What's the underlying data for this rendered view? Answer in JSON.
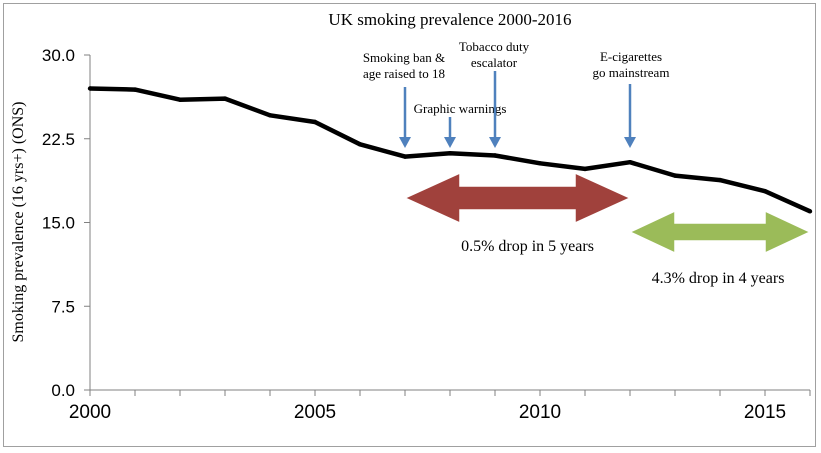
{
  "chart_data": {
    "type": "line",
    "title": "UK smoking prevalence 2000-2016",
    "xlabel": "",
    "ylabel": "Smoking prevalence (16 yrs+) (ONS)",
    "xlim": [
      2000,
      2016
    ],
    "ylim": [
      0,
      30
    ],
    "x_ticks": [
      "2000",
      "2005",
      "2010",
      "2015"
    ],
    "y_ticks": [
      "0.0",
      "7.5",
      "15.0",
      "22.5",
      "30.0"
    ],
    "grid": false,
    "series": [
      {
        "name": "",
        "color": "#000000",
        "x": [
          2000,
          2001,
          2002,
          2003,
          2004,
          2005,
          2006,
          2007,
          2008,
          2009,
          2010,
          2011,
          2012,
          2013,
          2014,
          2015,
          2016
        ],
        "y": [
          27.0,
          26.9,
          26.0,
          26.1,
          24.6,
          24.0,
          22.0,
          20.9,
          21.2,
          21.0,
          20.3,
          19.8,
          20.4,
          19.2,
          18.8,
          17.8,
          16.0
        ]
      }
    ],
    "event_markers": [
      {
        "year": 2007,
        "lines": [
          "Smoking ban &",
          "age raised to 18"
        ]
      },
      {
        "year": 2008,
        "lines": [
          "Graphic warnings"
        ]
      },
      {
        "year": 2009,
        "lines": [
          "Tobacco duty",
          "escalator"
        ]
      },
      {
        "year": 2012,
        "lines": [
          "E-cigarettes",
          "go mainstream"
        ]
      }
    ],
    "ranges": [
      {
        "from": 2007,
        "to": 2012,
        "label": "0.5% drop in 5 years",
        "color": "#a0413c"
      },
      {
        "from": 2012,
        "to": 2016,
        "label": "4.3% drop in 4 years",
        "color": "#9bbb59"
      }
    ],
    "colors": {
      "event_arrow": "#4f81bd"
    }
  }
}
